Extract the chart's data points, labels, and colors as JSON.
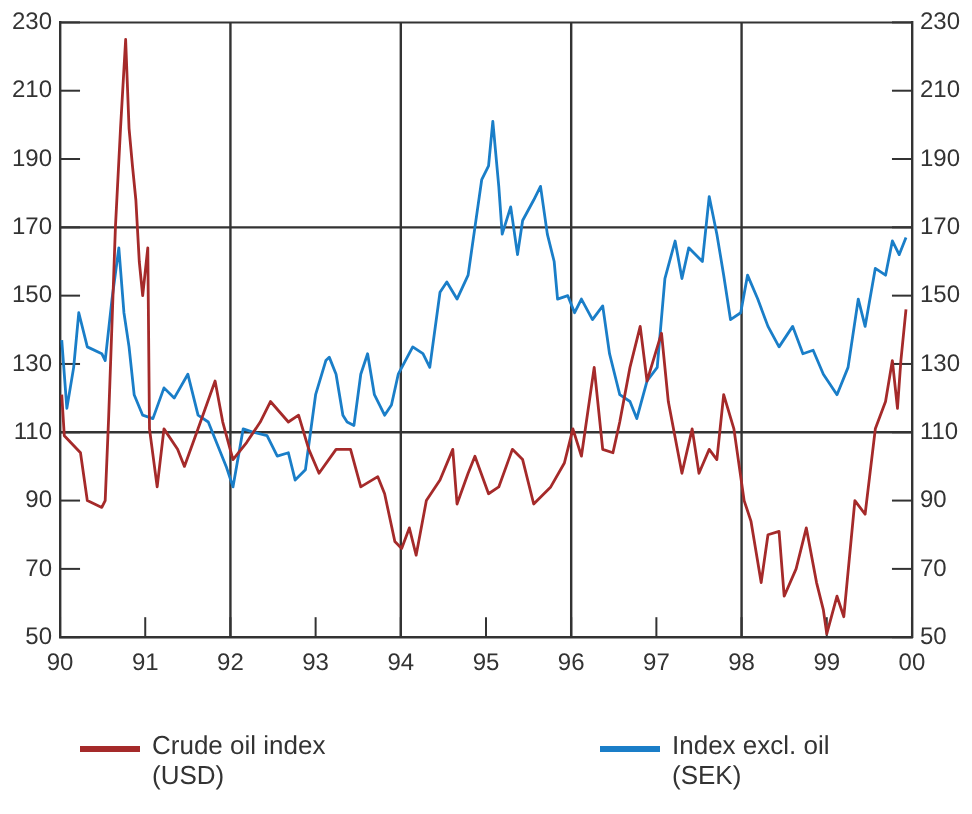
{
  "chart_data": {
    "type": "line",
    "legend": "bottom",
    "grid": false,
    "marker": "none",
    "xlim": [
      1990,
      2000
    ],
    "xticks": [
      {
        "value": 1990,
        "label": "90"
      },
      {
        "value": 1991,
        "label": "91"
      },
      {
        "value": 1992,
        "label": "92"
      },
      {
        "value": 1993,
        "label": "93"
      },
      {
        "value": 1994,
        "label": "94"
      },
      {
        "value": 1995,
        "label": "95"
      },
      {
        "value": 1996,
        "label": "96"
      },
      {
        "value": 1997,
        "label": "97"
      },
      {
        "value": 1998,
        "label": "98"
      },
      {
        "value": 1999,
        "label": "99"
      },
      {
        "value": 2000,
        "label": "00"
      }
    ],
    "ylim": [
      50,
      230
    ],
    "yticks": [
      50,
      70,
      90,
      110,
      130,
      150,
      170,
      190,
      210,
      230
    ],
    "y2lim": [
      50,
      230
    ],
    "y2ticks": [
      50,
      70,
      90,
      110,
      130,
      150,
      170,
      190,
      210,
      230
    ],
    "ref_lines": [
      {
        "axis": "y",
        "value": 110,
        "color": "#333333"
      },
      {
        "axis": "y",
        "value": 170,
        "color": "#333333"
      },
      {
        "axis": "x",
        "value": 1992,
        "color": "#333333"
      },
      {
        "axis": "x",
        "value": 1994,
        "color": "#333333"
      },
      {
        "axis": "x",
        "value": 1996,
        "color": "#333333"
      },
      {
        "axis": "x",
        "value": 1998,
        "color": "#333333"
      }
    ],
    "series": [
      {
        "name": "Crude oil index (USD)",
        "color": "#a52a2a",
        "line_style": "solid",
        "x": [
          1990.02,
          1990.05,
          1990.24,
          1990.32,
          1990.49,
          1990.53,
          1990.57,
          1990.65,
          1990.71,
          1990.77,
          1990.81,
          1990.85,
          1990.89,
          1990.93,
          1990.97,
          1991.03,
          1991.05,
          1991.14,
          1991.22,
          1991.38,
          1991.46,
          1991.62,
          1991.82,
          1991.91,
          1992.03,
          1992.19,
          1992.35,
          1992.47,
          1992.68,
          1992.8,
          1992.92,
          1993.04,
          1993.24,
          1993.41,
          1993.53,
          1993.73,
          1993.81,
          1993.93,
          1994.01,
          1994.1,
          1994.18,
          1994.3,
          1994.46,
          1994.61,
          1994.66,
          1994.79,
          1994.87,
          1995.03,
          1995.15,
          1995.31,
          1995.43,
          1995.56,
          1995.76,
          1995.92,
          1996.02,
          1996.12,
          1996.27,
          1996.37,
          1996.49,
          1996.57,
          1996.69,
          1996.81,
          1996.89,
          1997.06,
          1997.14,
          1997.3,
          1997.42,
          1997.5,
          1997.62,
          1997.71,
          1997.79,
          1997.91,
          1998.03,
          1998.11,
          1998.23,
          1998.31,
          1998.44,
          1998.5,
          1998.64,
          1998.76,
          1998.88,
          1998.96,
          1999,
          1999.12,
          1999.2,
          1999.33,
          1999.45,
          1999.57,
          1999.69,
          1999.77,
          1999.83,
          1999.87,
          1999.93
        ],
        "values": [
          121,
          109,
          104,
          90,
          88,
          90,
          114,
          170,
          199,
          225,
          199,
          188,
          178,
          160,
          150,
          164,
          111,
          94,
          111,
          105,
          100,
          111,
          125,
          113,
          102,
          107,
          113,
          119,
          113,
          115,
          105,
          98,
          105,
          105,
          94,
          97,
          92,
          78,
          76,
          82,
          74,
          90,
          96,
          105,
          89,
          98,
          103,
          92,
          94,
          105,
          102,
          89,
          94,
          101,
          111,
          103,
          129,
          105,
          104,
          113,
          129,
          141,
          125,
          139,
          119,
          98,
          111,
          98,
          105,
          102,
          121,
          111,
          90,
          84,
          66,
          80,
          81,
          62,
          70,
          82,
          66,
          58,
          51,
          62,
          56,
          90,
          86,
          111,
          119,
          131,
          117,
          131,
          146
        ]
      },
      {
        "name": "Index excl. oil (SEK)",
        "color": "#1a7ec8",
        "line_style": "solid",
        "x": [
          1990.02,
          1990.08,
          1990.16,
          1990.22,
          1990.32,
          1990.49,
          1990.53,
          1990.61,
          1990.69,
          1990.75,
          1990.81,
          1990.87,
          1990.97,
          1991.09,
          1991.22,
          1991.34,
          1991.5,
          1991.62,
          1991.74,
          1991.95,
          1992.03,
          1992.15,
          1992.27,
          1992.43,
          1992.55,
          1992.68,
          1992.76,
          1992.88,
          1993,
          1993.12,
          1993.16,
          1993.24,
          1993.28,
          1993.32,
          1993.37,
          1993.45,
          1993.53,
          1993.61,
          1993.69,
          1993.81,
          1993.89,
          1993.97,
          1994.14,
          1994.26,
          1994.34,
          1994.46,
          1994.54,
          1994.66,
          1994.79,
          1994.87,
          1994.95,
          1995.03,
          1995.08,
          1995.15,
          1995.19,
          1995.29,
          1995.37,
          1995.43,
          1995.56,
          1995.64,
          1995.72,
          1995.8,
          1995.84,
          1995.96,
          1996.04,
          1996.12,
          1996.25,
          1996.37,
          1996.45,
          1996.53,
          1996.57,
          1996.69,
          1996.77,
          1996.89,
          1997.01,
          1997.1,
          1997.22,
          1997.3,
          1997.38,
          1997.54,
          1997.62,
          1997.71,
          1997.79,
          1997.87,
          1997.99,
          1998.07,
          1998.19,
          1998.31,
          1998.44,
          1998.6,
          1998.72,
          1998.84,
          1998.96,
          1999.12,
          1999.25,
          1999.37,
          1999.45,
          1999.57,
          1999.69,
          1999.77,
          1999.85,
          1999.93
        ],
        "values": [
          137,
          117,
          129,
          145,
          135,
          133,
          131,
          149,
          164,
          145,
          135,
          121,
          115,
          114,
          123,
          120,
          127,
          115,
          113,
          100,
          94,
          111,
          110,
          109,
          103,
          104,
          96,
          99,
          121,
          131,
          132,
          127,
          121,
          115,
          113,
          112,
          127,
          133,
          121,
          115,
          118,
          127,
          135,
          133,
          129,
          151,
          154,
          149,
          156,
          170,
          184,
          188,
          201,
          182,
          168,
          176,
          162,
          172,
          178,
          182,
          168,
          160,
          149,
          150,
          145,
          149,
          143,
          147,
          133,
          125,
          121,
          119,
          114,
          125,
          129,
          155,
          166,
          155,
          164,
          160,
          179,
          168,
          156,
          143,
          145,
          156,
          149,
          141,
          135,
          141,
          133,
          134,
          127,
          121,
          129,
          149,
          141,
          158,
          156,
          166,
          162,
          167
        ]
      }
    ]
  }
}
